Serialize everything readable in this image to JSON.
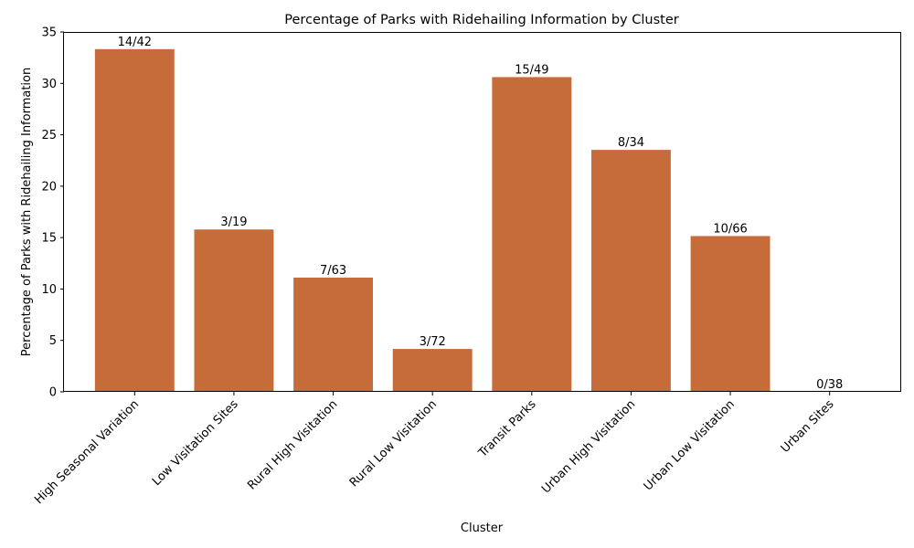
{
  "chart_data": {
    "type": "bar",
    "title": "Percentage of Parks with Ridehailing Information by Cluster",
    "xlabel": "Cluster",
    "ylabel": "Percentage of Parks with Ridehailing Information",
    "categories": [
      "High Seasonal Variation",
      "Low Visitation Sites",
      "Rural High Visitation",
      "Rural Low Visitation",
      "Transit Parks",
      "Urban High Visitation",
      "Urban Low Visitation",
      "Urban Sites"
    ],
    "values": [
      33.33,
      15.79,
      11.11,
      4.17,
      30.61,
      23.53,
      15.15,
      0.0
    ],
    "bar_labels": [
      "14/42",
      "3/19",
      "7/63",
      "3/72",
      "15/49",
      "8/34",
      "10/66",
      "0/38"
    ],
    "yticks": [
      0,
      5,
      10,
      15,
      20,
      25,
      30,
      35
    ],
    "ylim": [
      0,
      35
    ],
    "bar_color": "#c66c3a",
    "grid": false,
    "legend": "none"
  }
}
